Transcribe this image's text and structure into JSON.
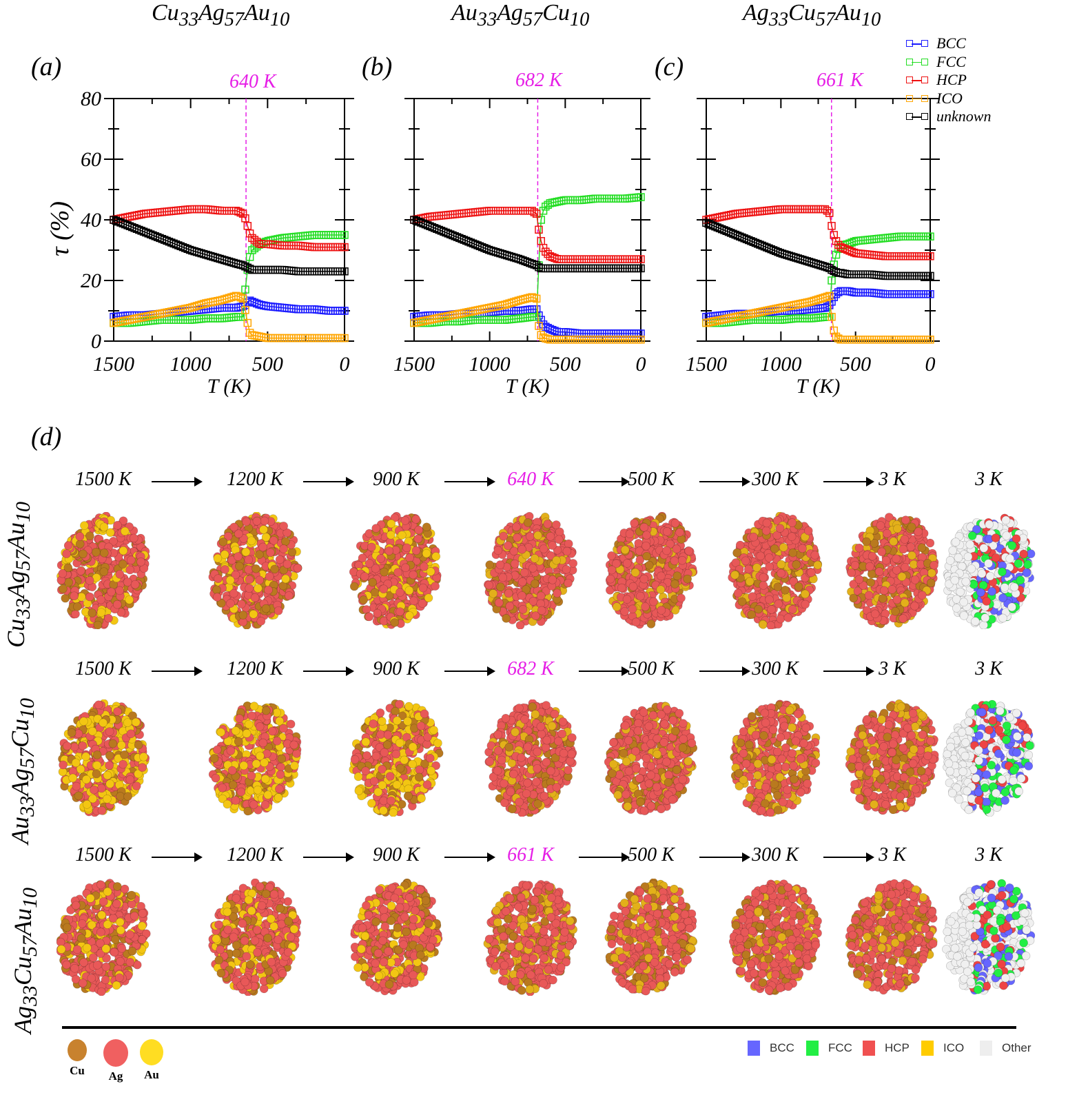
{
  "panel_titles": [
    {
      "label": "(a)",
      "a": "Cu",
      "a_sub": "33",
      "b": "Ag",
      "b_sub": "57",
      "c": "Au",
      "c_sub": "10",
      "transition": "640 K"
    },
    {
      "label": "(b)",
      "a": "Au",
      "a_sub": "33",
      "b": "Ag",
      "b_sub": "57",
      "c": "Cu",
      "c_sub": "10",
      "transition": "682 K"
    },
    {
      "label": "(c)",
      "a": "Ag",
      "a_sub": "33",
      "b": "Cu",
      "b_sub": "57",
      "c": "Au",
      "c_sub": "10",
      "transition": "661 K"
    }
  ],
  "colors": {
    "BCC": "#1a1aff",
    "FCC": "#22dd22",
    "HCP": "#ee1111",
    "ICO": "#ffa500",
    "unknown": "#000000",
    "transition_line": "#e61ee6"
  },
  "chart_data": [
    {
      "type": "line",
      "panel": "(a)",
      "transition_T": 640,
      "xlabel": "T (K)",
      "ylabel": "τ (%)",
      "xlim": [
        1500,
        0
      ],
      "ylim": [
        0,
        80
      ],
      "xticks": [
        "1500",
        "1000",
        "500",
        "0"
      ],
      "yticks": [
        "0",
        "20",
        "40",
        "60",
        "80"
      ],
      "x": [
        1500,
        1400,
        1300,
        1200,
        1100,
        1000,
        900,
        800,
        700,
        660,
        640,
        620,
        600,
        550,
        500,
        400,
        300,
        200,
        100,
        0
      ],
      "series": [
        {
          "name": "BCC",
          "values": [
            8,
            8.5,
            8.5,
            9,
            9.5,
            10,
            10.5,
            11,
            11,
            11.5,
            12,
            13.5,
            13,
            12,
            11.5,
            11,
            10.5,
            10.5,
            10,
            10
          ]
        },
        {
          "name": "FCC",
          "values": [
            6,
            6,
            6.5,
            7,
            7,
            7,
            7.5,
            7.5,
            8,
            8,
            20,
            27,
            30,
            32,
            33,
            34,
            34.5,
            35,
            35,
            35
          ]
        },
        {
          "name": "HCP",
          "values": [
            40,
            41,
            42,
            42.5,
            43,
            43.5,
            43.5,
            43,
            43,
            42,
            40,
            36,
            34,
            32,
            32,
            31.5,
            31.5,
            31,
            31,
            31
          ]
        },
        {
          "name": "ICO",
          "values": [
            6,
            7,
            8,
            9,
            10,
            11,
            12.5,
            13.5,
            15,
            14,
            9,
            3,
            2,
            1.5,
            1,
            1,
            1,
            1,
            1,
            1
          ]
        },
        {
          "name": "unknown",
          "values": [
            40,
            38,
            36,
            34,
            32,
            30,
            28.5,
            27,
            25.5,
            25,
            24.5,
            24,
            23.5,
            23.5,
            23.5,
            23.5,
            23,
            23,
            23,
            23
          ]
        }
      ]
    },
    {
      "type": "line",
      "panel": "(b)",
      "transition_T": 682,
      "xlabel": "T (K)",
      "ylabel": "",
      "xlim": [
        1500,
        0
      ],
      "ylim": [
        0,
        80
      ],
      "xticks": [
        "1500",
        "1000",
        "500",
        "0"
      ],
      "yticks": [],
      "x": [
        1500,
        1400,
        1300,
        1200,
        1100,
        1000,
        900,
        800,
        720,
        690,
        680,
        660,
        640,
        600,
        550,
        500,
        400,
        300,
        200,
        100,
        0
      ],
      "series": [
        {
          "name": "BCC",
          "values": [
            8,
            8.5,
            8.5,
            9,
            9,
            9.5,
            10,
            10,
            10.5,
            10.5,
            9,
            7,
            5,
            4,
            3,
            3,
            2.5,
            2.5,
            2.5,
            2.5,
            2.5
          ]
        },
        {
          "name": "FCC",
          "values": [
            6,
            6,
            6.5,
            6.5,
            7,
            7,
            7,
            7.5,
            8,
            8,
            20,
            40,
            44,
            45.5,
            46,
            46.5,
            46.5,
            47,
            47,
            47,
            47.5
          ]
        },
        {
          "name": "HCP",
          "values": [
            40,
            41,
            41.5,
            42,
            42.5,
            43,
            43,
            43,
            43,
            42,
            38,
            33,
            30,
            28,
            27,
            27,
            27,
            27,
            27,
            27,
            27
          ]
        },
        {
          "name": "ICO",
          "values": [
            6,
            7,
            8,
            9,
            10,
            11,
            12,
            13.5,
            14.5,
            14,
            6,
            2,
            1,
            0.5,
            0.5,
            0.5,
            0.5,
            0.5,
            0.5,
            0.5,
            0.5
          ]
        },
        {
          "name": "unknown",
          "values": [
            40,
            38,
            36,
            34,
            32,
            30,
            28.5,
            27,
            25.5,
            25,
            24.5,
            24,
            24,
            24,
            24,
            24,
            24,
            24,
            24,
            24,
            24
          ]
        }
      ]
    },
    {
      "type": "line",
      "panel": "(c)",
      "transition_T": 661,
      "xlabel": "T (K)",
      "ylabel": "",
      "xlim": [
        1500,
        0
      ],
      "ylim": [
        0,
        80
      ],
      "xticks": [
        "1500",
        "1000",
        "500",
        "0"
      ],
      "yticks": [],
      "x": [
        1500,
        1400,
        1300,
        1200,
        1100,
        1000,
        900,
        800,
        700,
        670,
        660,
        640,
        620,
        600,
        550,
        500,
        400,
        300,
        200,
        100,
        0
      ],
      "series": [
        {
          "name": "BCC",
          "values": [
            8,
            8.5,
            9,
            9,
            9.5,
            10,
            10,
            10.5,
            11,
            12,
            13,
            15,
            16,
            16.5,
            16.5,
            16,
            16,
            15.5,
            15.5,
            15.5,
            15.5
          ]
        },
        {
          "name": "FCC",
          "values": [
            6,
            6,
            6.5,
            7,
            7,
            7,
            7.5,
            7.5,
            8,
            8,
            20,
            27,
            30,
            31.5,
            32,
            33,
            33.5,
            34,
            34.5,
            34.5,
            34.5
          ]
        },
        {
          "name": "HCP",
          "values": [
            40,
            41,
            42,
            42.5,
            43,
            43.5,
            43.5,
            43.5,
            43.5,
            42,
            38,
            34,
            32,
            31,
            30,
            29,
            28.5,
            28,
            28,
            28,
            28
          ]
        },
        {
          "name": "ICO",
          "values": [
            6,
            7,
            8,
            9,
            10,
            11,
            12,
            13,
            14.5,
            15,
            8,
            2,
            1,
            0.5,
            0.5,
            0.5,
            0.5,
            0.5,
            0.5,
            0.5,
            0.5
          ]
        },
        {
          "name": "unknown",
          "values": [
            39,
            37,
            35,
            33,
            31,
            29,
            27.5,
            26,
            24.5,
            24,
            23.5,
            23,
            22.5,
            22.5,
            22,
            22,
            22,
            21.5,
            21.5,
            21.5,
            21.5
          ]
        }
      ]
    }
  ],
  "legend": [
    "BCC",
    "FCC",
    "HCP",
    "ICO",
    "unknown"
  ],
  "axis": {
    "ylabel": "τ (%)",
    "xlabel": "T (K)"
  },
  "snapshots": {
    "label": "(d)",
    "rows": [
      {
        "label_a": "Cu",
        "a_sub": "33",
        "label_b": "Ag",
        "b_sub": "57",
        "label_c": "Au",
        "c_sub": "10",
        "temps": [
          "1500 K",
          "1200 K",
          "900 K",
          "640 K",
          "500 K",
          "300 K",
          "3 K",
          "3 K"
        ]
      },
      {
        "label_a": "Au",
        "a_sub": "33",
        "label_b": "Ag",
        "b_sub": "57",
        "label_c": "Cu",
        "c_sub": "10",
        "temps": [
          "1500 K",
          "1200 K",
          "900 K",
          "682 K",
          "500 K",
          "300 K",
          "3 K",
          "3 K"
        ]
      },
      {
        "label_a": "Ag",
        "a_sub": "33",
        "label_b": "Cu",
        "b_sub": "57",
        "label_c": "Au",
        "c_sub": "10",
        "temps": [
          "1500 K",
          "1200 K",
          "900 K",
          "661 K",
          "500 K",
          "300 K",
          "3 K",
          "3 K"
        ]
      }
    ]
  },
  "atom_legend": [
    {
      "label": "Cu",
      "color": "#c8822e"
    },
    {
      "label": "Ag",
      "color": "#f06060"
    },
    {
      "label": "Au",
      "color": "#ffdd22"
    }
  ],
  "structure_legend": [
    {
      "label": "BCC",
      "color": "#6666ff"
    },
    {
      "label": "FCC",
      "color": "#22ee44"
    },
    {
      "label": "HCP",
      "color": "#f05050"
    },
    {
      "label": "ICO",
      "color": "#ffcc00"
    },
    {
      "label": "Other",
      "color": "#eeeeee"
    }
  ]
}
